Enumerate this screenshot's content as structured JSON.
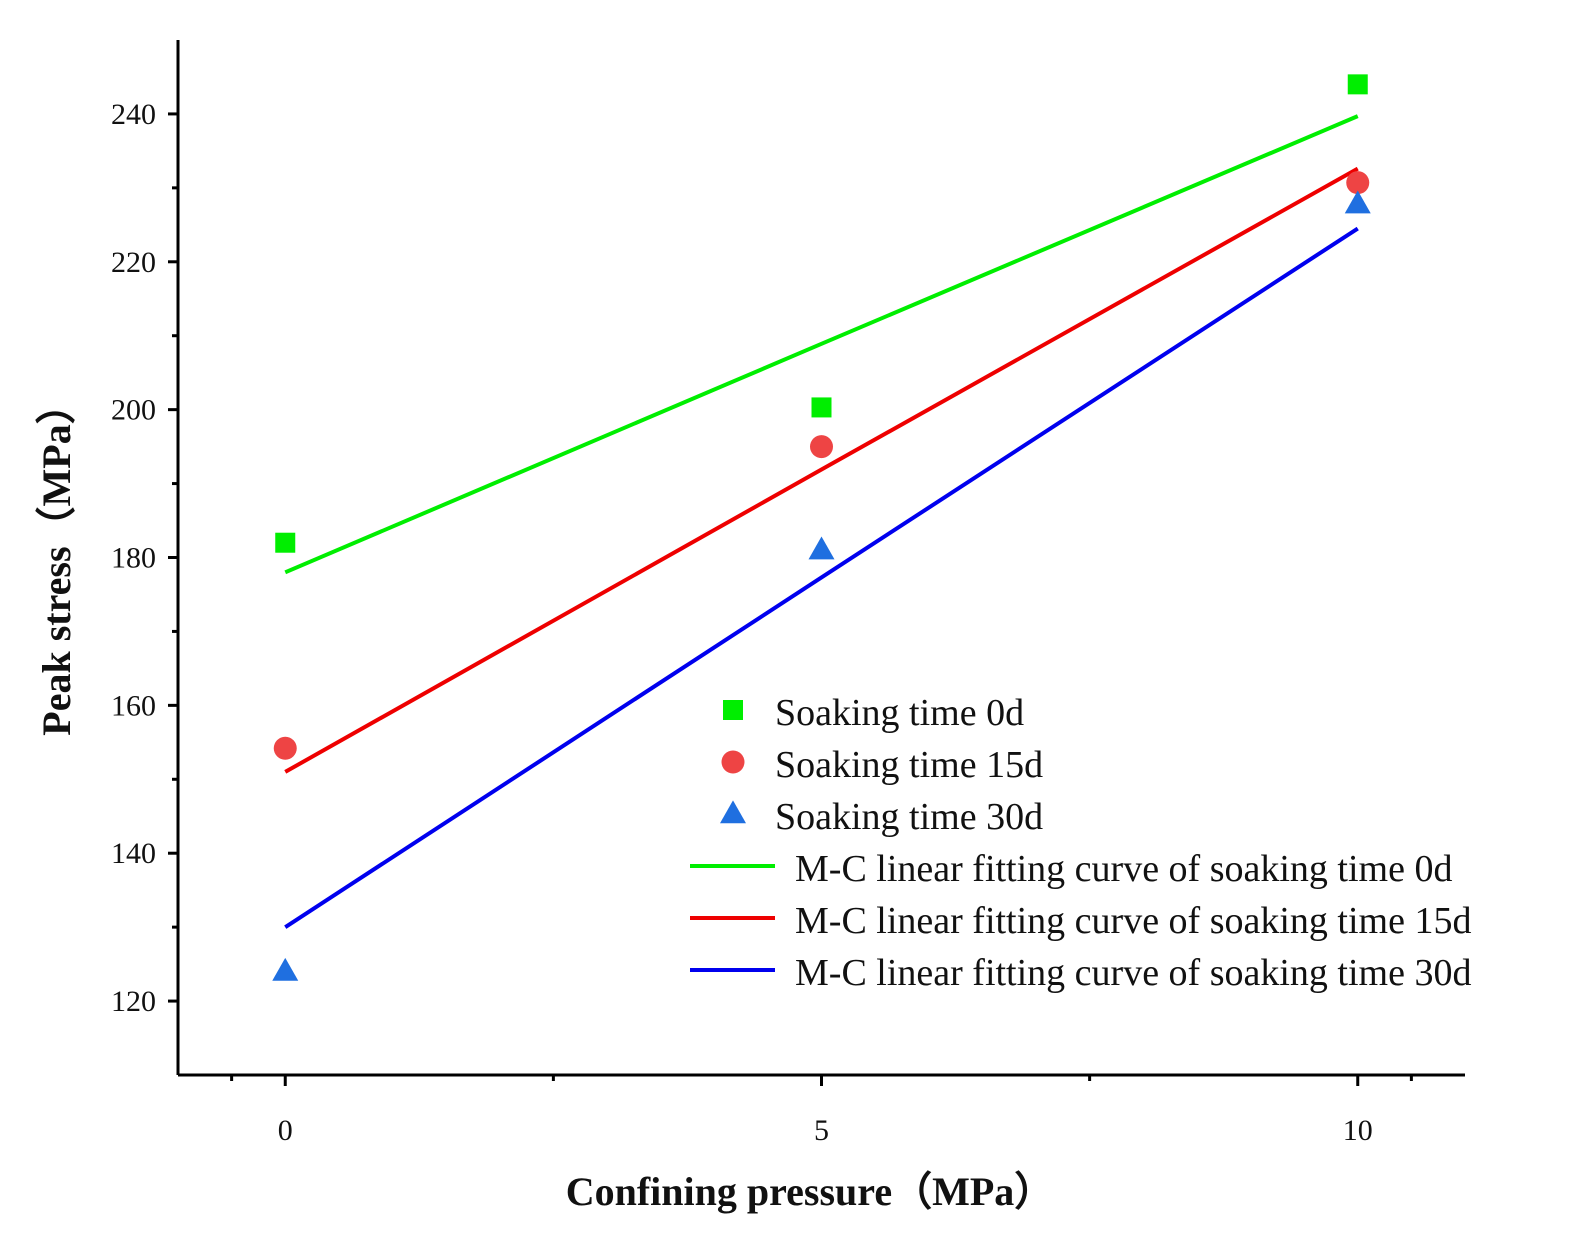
{
  "chart_data": {
    "type": "scatter",
    "xlabel": "Confining pressure（MPa）",
    "ylabel": "Peak stress（MPa）",
    "xlim": [
      -1,
      11
    ],
    "ylim": [
      110,
      250
    ],
    "xticks": [
      0,
      5,
      10
    ],
    "yticks": [
      120,
      140,
      160,
      180,
      200,
      220,
      240
    ],
    "x": [
      0,
      5,
      10
    ],
    "series": [
      {
        "name": "Soaking time 0d",
        "kind": "points",
        "marker": "square",
        "color": "#00ee00",
        "values": [
          182,
          200.3,
          244
        ]
      },
      {
        "name": "Soaking time 15d",
        "kind": "points",
        "marker": "circle",
        "color": "#ee4444",
        "values": [
          154.2,
          195,
          230.7
        ]
      },
      {
        "name": "Soaking time 30d",
        "kind": "points",
        "marker": "triangle",
        "color": "#1f6fe0",
        "values": [
          124,
          181,
          227.8
        ]
      },
      {
        "name": "M-C linear fitting curve of soaking time 0d",
        "kind": "line",
        "color": "#00ee00",
        "values": [
          178,
          208.9,
          239.7
        ]
      },
      {
        "name": "M-C linear fitting curve of soaking time 15d",
        "kind": "line",
        "color": "#ee0000",
        "values": [
          151,
          191.9,
          232.6
        ]
      },
      {
        "name": "M-C linear fitting curve of soaking time 30d",
        "kind": "line",
        "color": "#0000ee",
        "values": [
          130,
          177.3,
          224.5
        ]
      }
    ],
    "legend_position": "bottom-right"
  }
}
